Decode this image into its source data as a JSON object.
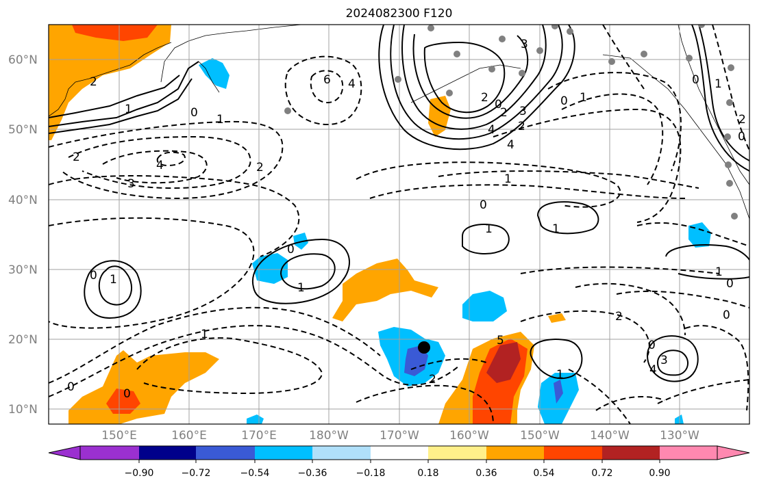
{
  "title": "2024082300 F120",
  "map": {
    "lat_labels": [
      "10°N",
      "20°N",
      "30°N",
      "40°N",
      "50°N",
      "60°N"
    ],
    "lon_labels": [
      "150°E",
      "160°E",
      "170°E",
      "180°W",
      "170°W",
      "160°W",
      "150°W",
      "140°W",
      "130°W"
    ],
    "grid": true,
    "marker": "black-dot-storm-position",
    "contour_labels": [
      "2",
      "1",
      "0",
      "2",
      "3",
      "4",
      "2",
      "1",
      "0",
      "1",
      "0",
      "1",
      "1",
      "0",
      "0",
      "1",
      "0",
      "1",
      "1",
      "0",
      "0",
      "2",
      "1",
      "0",
      "3",
      "4",
      "2",
      "5",
      "6",
      "4",
      "3",
      "2",
      "0",
      "2",
      "4",
      "3",
      "2",
      "4",
      "0",
      "1",
      "1",
      "0",
      "1",
      "2",
      "0"
    ]
  },
  "colorbar": {
    "ticks": [
      "−0.90",
      "−0.72",
      "−0.54",
      "−0.36",
      "−0.18",
      "0.18",
      "0.36",
      "0.54",
      "0.72",
      "0.90"
    ],
    "colors": [
      "#9b30d0",
      "#00008b",
      "#3a5ad6",
      "#00bfff",
      "#b0e0fa",
      "#ffffff",
      "#fff08a",
      "#ffa500",
      "#ff4500",
      "#b22222",
      "#ff88b0"
    ]
  }
}
